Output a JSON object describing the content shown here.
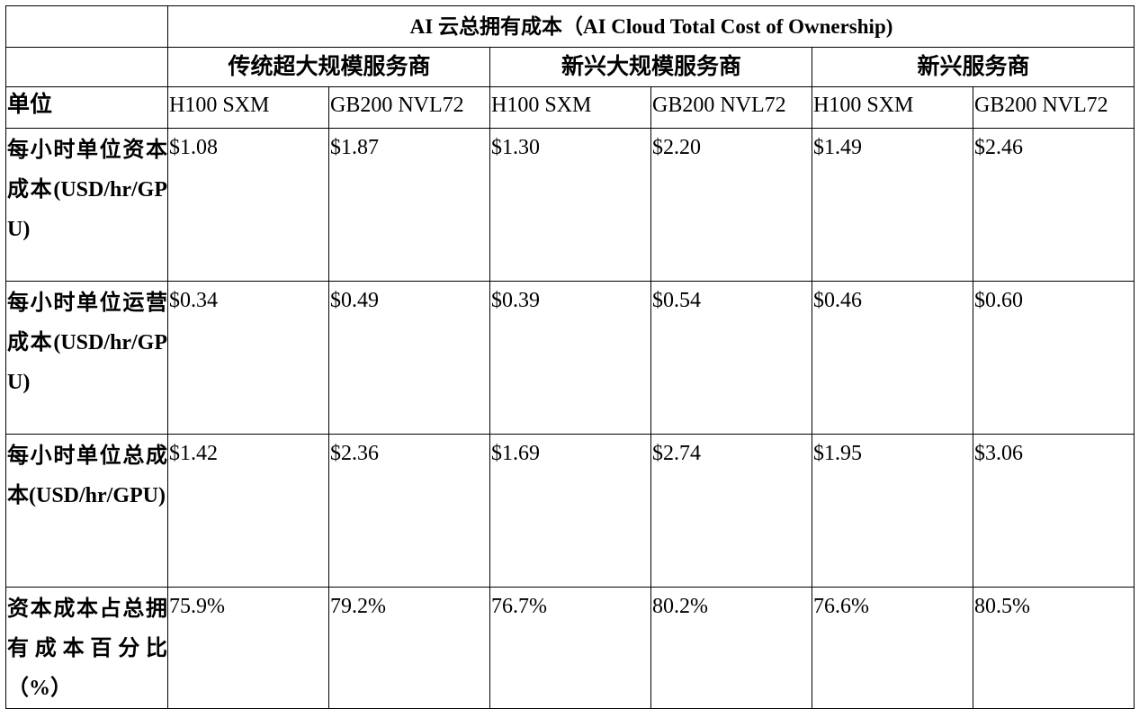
{
  "table": {
    "title": "AI 云总拥有成本（AI Cloud Total Cost of Ownership)",
    "providers": [
      "传统超大规模服务商",
      "新兴大规模服务商",
      "新兴服务商"
    ],
    "unit_label": "单位",
    "gpus": [
      "H100 SXM",
      "GB200 NVL72",
      "H100 SXM",
      "GB200 NVL72",
      "H100 SXM",
      "GB200 NVL72"
    ],
    "rows": [
      {
        "label": "每小时单位资本成本(USD/hr/GPU)",
        "values": [
          "$1.08",
          "$1.87",
          "$1.30",
          "$2.20",
          "$1.49",
          "$2.46"
        ]
      },
      {
        "label": "每小时单位运营成本(USD/hr/GPU)",
        "values": [
          "$0.34",
          "$0.49",
          "$0.39",
          "$0.54",
          "$0.46",
          "$0.60"
        ]
      },
      {
        "label": "每小时单位总成本(USD/hr/GPU)",
        "values": [
          "$1.42",
          "$2.36",
          "$1.69",
          "$2.74",
          "$1.95",
          "$3.06"
        ]
      },
      {
        "label": "资本成本占总拥有成本百分比（%）",
        "values": [
          "75.9%",
          "79.2%",
          "76.7%",
          "80.2%",
          "76.6%",
          "80.5%"
        ]
      }
    ]
  }
}
